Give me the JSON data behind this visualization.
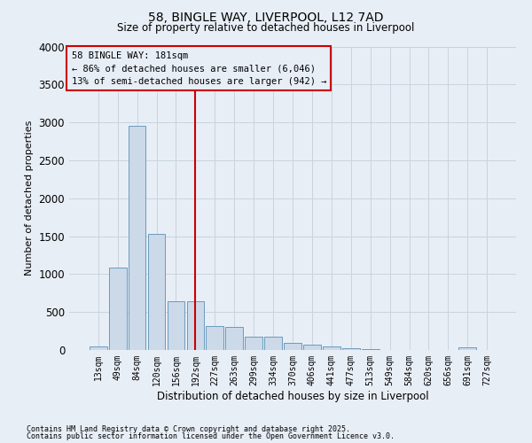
{
  "title": "58, BINGLE WAY, LIVERPOOL, L12 7AD",
  "subtitle": "Size of property relative to detached houses in Liverpool",
  "xlabel": "Distribution of detached houses by size in Liverpool",
  "ylabel": "Number of detached properties",
  "footnote1": "Contains HM Land Registry data © Crown copyright and database right 2025.",
  "footnote2": "Contains public sector information licensed under the Open Government Licence v3.0.",
  "annotation_title": "58 BINGLE WAY: 181sqm",
  "annotation_line1": "← 86% of detached houses are smaller (6,046)",
  "annotation_line2": "13% of semi-detached houses are larger (942) →",
  "bar_color": "#ccd9e8",
  "bar_edge_color": "#6a9bbf",
  "vline_color": "#cc0000",
  "annotation_box_edge": "#cc0000",
  "grid_color": "#c8d4e0",
  "bg_color": "#e8eef6",
  "categories": [
    "13sqm",
    "49sqm",
    "84sqm",
    "120sqm",
    "156sqm",
    "192sqm",
    "227sqm",
    "263sqm",
    "299sqm",
    "334sqm",
    "370sqm",
    "406sqm",
    "441sqm",
    "477sqm",
    "513sqm",
    "549sqm",
    "584sqm",
    "620sqm",
    "656sqm",
    "691sqm",
    "727sqm"
  ],
  "values": [
    50,
    1090,
    2950,
    1530,
    640,
    640,
    310,
    300,
    170,
    170,
    88,
    75,
    45,
    18,
    10,
    4,
    4,
    4,
    4,
    38,
    4
  ],
  "vline_x": 5,
  "ylim": [
    0,
    4000
  ],
  "yticks": [
    0,
    500,
    1000,
    1500,
    2000,
    2500,
    3000,
    3500,
    4000
  ]
}
